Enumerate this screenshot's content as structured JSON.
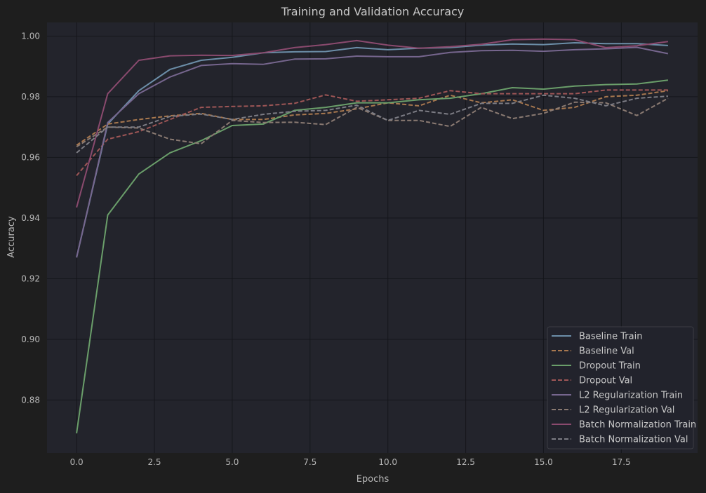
{
  "chart_data": {
    "type": "line",
    "title": "Training and Validation Accuracy",
    "xlabel": "Epochs",
    "ylabel": "Accuracy",
    "xlim": [
      -0.95,
      19.95
    ],
    "ylim": [
      0.8625,
      1.0045
    ],
    "xticks": [
      0.0,
      2.5,
      5.0,
      7.5,
      10.0,
      12.5,
      15.0,
      17.5
    ],
    "xtick_labels": [
      "0.0",
      "2.5",
      "5.0",
      "7.5",
      "10.0",
      "12.5",
      "15.0",
      "17.5"
    ],
    "yticks": [
      0.88,
      0.9,
      0.92,
      0.94,
      0.96,
      0.98,
      1.0
    ],
    "ytick_labels": [
      "0.88",
      "0.90",
      "0.92",
      "0.94",
      "0.96",
      "0.98",
      "1.00"
    ],
    "grid": true,
    "legend_position": "bottom-right",
    "background": "#23242c",
    "x": [
      0,
      1,
      2,
      3,
      4,
      5,
      6,
      7,
      8,
      9,
      10,
      11,
      12,
      13,
      14,
      15,
      16,
      17,
      18,
      19
    ],
    "series": [
      {
        "name": "Baseline Train",
        "color": "#6c8ea8",
        "dash": "solid",
        "values": [
          0.927,
          0.971,
          0.982,
          0.989,
          0.992,
          0.993,
          0.9945,
          0.9948,
          0.9949,
          0.9962,
          0.9955,
          0.996,
          0.9962,
          0.997,
          0.9974,
          0.9972,
          0.9978,
          0.9975,
          0.9975,
          0.9969
        ]
      },
      {
        "name": "Baseline Val",
        "color": "#a8784f",
        "dash": "dashed",
        "values": [
          0.964,
          0.971,
          0.9725,
          0.9737,
          0.9745,
          0.9725,
          0.9725,
          0.974,
          0.9745,
          0.976,
          0.978,
          0.977,
          0.9805,
          0.978,
          0.979,
          0.9755,
          0.9765,
          0.98,
          0.9805,
          0.982
        ]
      },
      {
        "name": "Dropout Train",
        "color": "#6a9e6a",
        "dash": "solid",
        "values": [
          0.869,
          0.941,
          0.9545,
          0.9615,
          0.9655,
          0.9705,
          0.971,
          0.9755,
          0.9765,
          0.978,
          0.978,
          0.979,
          0.9795,
          0.981,
          0.983,
          0.9825,
          0.9835,
          0.984,
          0.9842,
          0.9855
        ]
      },
      {
        "name": "Dropout Val",
        "color": "#9e5656",
        "dash": "dashed",
        "values": [
          0.954,
          0.966,
          0.9685,
          0.9725,
          0.9765,
          0.9768,
          0.977,
          0.9778,
          0.9806,
          0.9785,
          0.979,
          0.9795,
          0.982,
          0.981,
          0.981,
          0.981,
          0.981,
          0.9822,
          0.9822,
          0.9822
        ]
      },
      {
        "name": "L2 Regularization Train",
        "color": "#76668e",
        "dash": "solid",
        "values": [
          0.927,
          0.9715,
          0.981,
          0.9865,
          0.9903,
          0.9909,
          0.9907,
          0.9924,
          0.9925,
          0.9934,
          0.9932,
          0.9932,
          0.9946,
          0.9952,
          0.9953,
          0.995,
          0.9955,
          0.9958,
          0.9963,
          0.9942
        ]
      },
      {
        "name": "L2 Regularization Val",
        "color": "#8a7a72",
        "dash": "dashed",
        "values": [
          0.9635,
          0.97,
          0.9697,
          0.966,
          0.9645,
          0.9722,
          0.9715,
          0.9716,
          0.9708,
          0.9765,
          0.9722,
          0.9722,
          0.9702,
          0.9765,
          0.9728,
          0.9745,
          0.9782,
          0.978,
          0.9738,
          0.9795
        ]
      },
      {
        "name": "Batch Normalization Train",
        "color": "#8a4a6e",
        "dash": "solid",
        "values": [
          0.9435,
          0.981,
          0.992,
          0.9935,
          0.9937,
          0.9936,
          0.9945,
          0.9962,
          0.9972,
          0.9985,
          0.997,
          0.996,
          0.9965,
          0.9973,
          0.9988,
          0.999,
          0.9988,
          0.9962,
          0.9968,
          0.9982
        ]
      },
      {
        "name": "Batch Normalization Val",
        "color": "#7c7c84",
        "dash": "dashed",
        "values": [
          0.9615,
          0.97,
          0.97,
          0.9735,
          0.9743,
          0.9725,
          0.9742,
          0.9752,
          0.9755,
          0.9772,
          0.9722,
          0.9755,
          0.9742,
          0.9778,
          0.9778,
          0.9805,
          0.9795,
          0.977,
          0.9795,
          0.9802
        ]
      }
    ]
  }
}
